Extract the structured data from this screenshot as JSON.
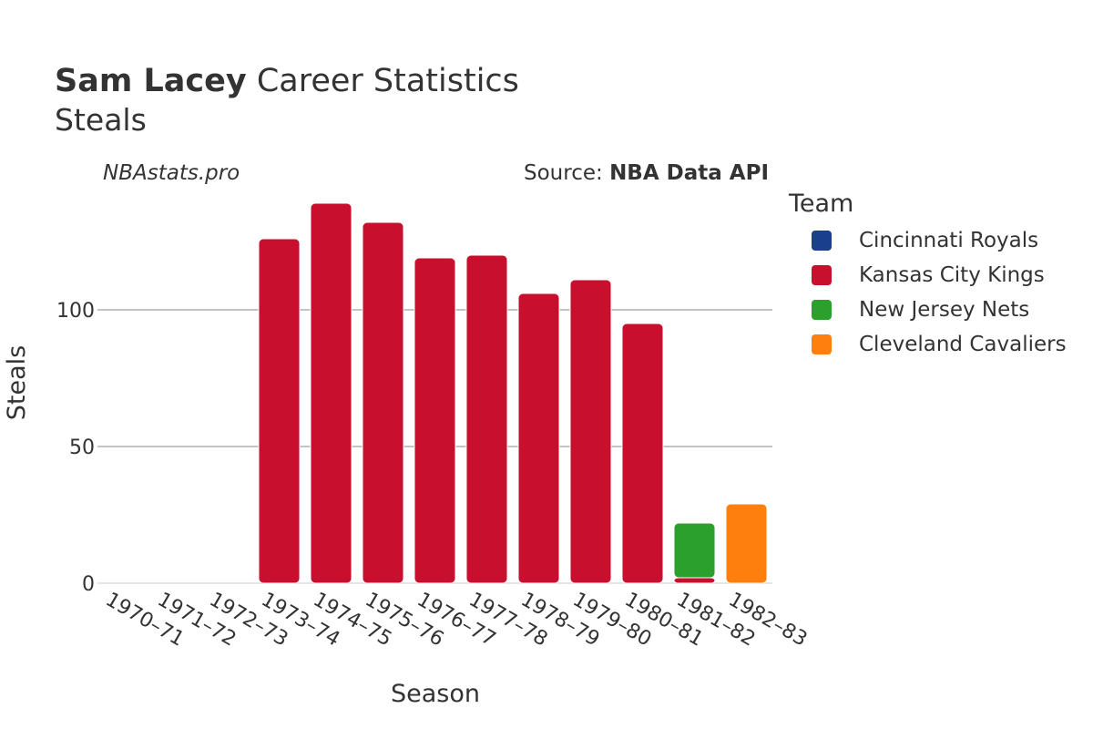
{
  "header": {
    "title_bold": "Sam Lacey",
    "title_rest": " Career Statistics",
    "subtitle": "Steals",
    "brand": "NBAstats.pro",
    "source_label": "Source: ",
    "source_value": "NBA Data API"
  },
  "legend": {
    "title": "Team",
    "items": [
      {
        "label": "Cincinnati Royals",
        "color": "#1a3f8c"
      },
      {
        "label": "Kansas City Kings",
        "color": "#c8102e"
      },
      {
        "label": "New Jersey Nets",
        "color": "#2ca02c"
      },
      {
        "label": "Cleveland Cavaliers",
        "color": "#ff7f0e"
      }
    ]
  },
  "chart_data": {
    "type": "bar",
    "stacked": true,
    "xlabel": "Season",
    "ylabel": "Steals",
    "ylim": [
      0,
      140
    ],
    "yticks": [
      0,
      50,
      100
    ],
    "grid": true,
    "legend_position": "right",
    "categories": [
      "1970–71",
      "1971–72",
      "1972–73",
      "1973–74",
      "1974–75",
      "1975–76",
      "1976–77",
      "1977–78",
      "1978–79",
      "1979–80",
      "1980–81",
      "1981–82",
      "1982–83"
    ],
    "series": [
      {
        "name": "Cincinnati Royals",
        "color": "#1a3f8c",
        "values": [
          0,
          0,
          0,
          0,
          0,
          0,
          0,
          0,
          0,
          0,
          0,
          0,
          0
        ]
      },
      {
        "name": "Kansas City Kings",
        "color": "#c8102e",
        "values": [
          0,
          0,
          0,
          126,
          139,
          132,
          119,
          120,
          106,
          111,
          95,
          2,
          0
        ]
      },
      {
        "name": "New Jersey Nets",
        "color": "#2ca02c",
        "values": [
          0,
          0,
          0,
          0,
          0,
          0,
          0,
          0,
          0,
          0,
          0,
          20,
          0
        ]
      },
      {
        "name": "Cleveland Cavaliers",
        "color": "#ff7f0e",
        "values": [
          0,
          0,
          0,
          0,
          0,
          0,
          0,
          0,
          0,
          0,
          0,
          0,
          29
        ]
      }
    ]
  }
}
